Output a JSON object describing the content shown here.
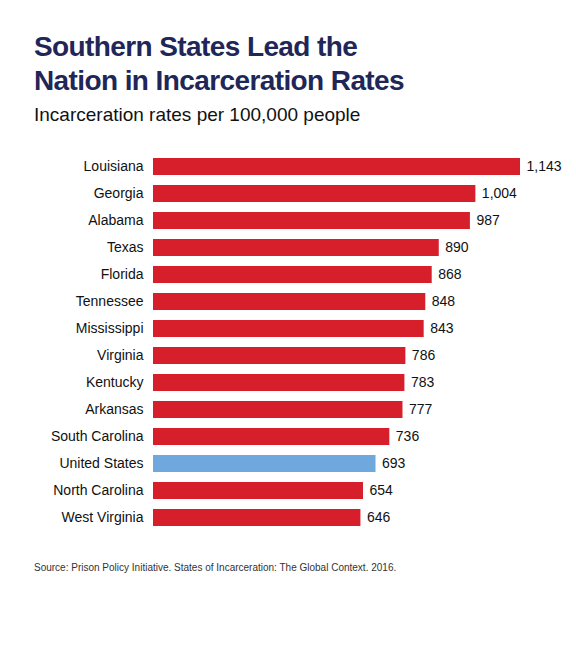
{
  "chart_data": {
    "type": "bar",
    "orientation": "horizontal",
    "title": "Southern States Lead the Nation in Incarceration Rates",
    "subtitle": "Incarceration rates per 100,000 people",
    "caption": "Source: Prison Policy Initiative. States of Incarceration: The Global Context. 2016.",
    "categories": [
      "Louisiana",
      "Georgia",
      "Alabama",
      "Texas",
      "Florida",
      "Tennessee",
      "Mississippi",
      "Virginia",
      "Kentucky",
      "Arkansas",
      "South Carolina",
      "United States",
      "North Carolina",
      "West Virginia"
    ],
    "values": [
      1143,
      1004,
      987,
      890,
      868,
      848,
      843,
      786,
      783,
      777,
      736,
      693,
      654,
      646
    ],
    "value_labels": [
      "1,143",
      "1,004",
      "987",
      "890",
      "868",
      "848",
      "843",
      "786",
      "783",
      "777",
      "736",
      "693",
      "654",
      "646"
    ],
    "colors": [
      "#d71f2c",
      "#d71f2c",
      "#d71f2c",
      "#d71f2c",
      "#d71f2c",
      "#d71f2c",
      "#d71f2c",
      "#d71f2c",
      "#d71f2c",
      "#d71f2c",
      "#d71f2c",
      "#6fa8dc",
      "#d71f2c",
      "#d71f2c"
    ],
    "xlim": [
      0,
      1143
    ],
    "data_labels": true,
    "tick_labels": "y",
    "grid": false
  }
}
